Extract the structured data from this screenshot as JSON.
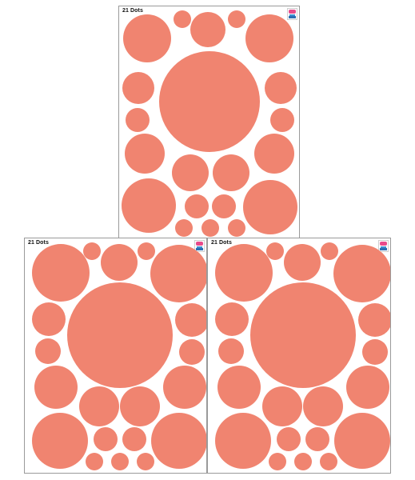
{
  "sheets": [
    {
      "id": "top",
      "label": "21 Dots"
    },
    {
      "id": "left",
      "label": "21 Dots"
    },
    {
      "id": "right",
      "label": "21 Dots"
    }
  ],
  "colors": {
    "dot": "#f08470",
    "sheet_bg": "#ffffff",
    "border": "#9a9a9a"
  },
  "logo_icon": "brand-logo-icon"
}
